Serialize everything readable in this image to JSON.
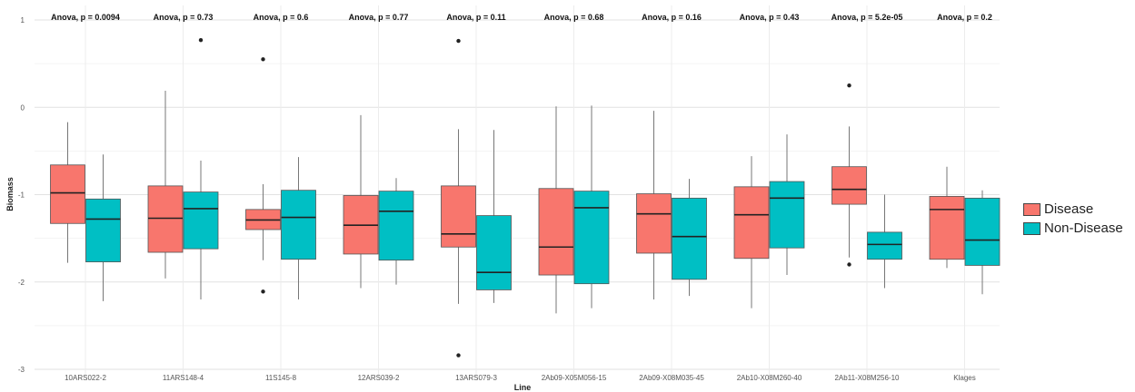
{
  "chart_data": {
    "type": "boxplot",
    "xlabel": "Line",
    "ylabel": "Biomass",
    "ylim": [
      -3,
      1
    ],
    "yticks": [
      1,
      0,
      -1,
      -2,
      -3
    ],
    "grid": true,
    "legend_position": "right",
    "colors": {
      "Disease": "#F8766D",
      "Non-Disease": "#00BFC4"
    },
    "categories": [
      "10ARS022-2",
      "11ARS148-4",
      "11S145-8",
      "12ARS039-2",
      "13ARS079-3",
      "2Ab09-X05M056-15",
      "2Ab09-X08M035-45",
      "2Ab10-X08M260-40",
      "2Ab11-X08M256-10",
      "Klages"
    ],
    "annotations": [
      "Anova, p = 0.0094",
      "Anova, p = 0.73",
      "Anova, p = 0.6",
      "Anova, p = 0.77",
      "Anova, p = 0.11",
      "Anova, p = 0.68",
      "Anova, p = 0.16",
      "Anova, p = 0.43",
      "Anova, p = 5.2e-05",
      "Anova, p = 0.2"
    ],
    "series": [
      {
        "name": "Disease",
        "boxes": [
          {
            "whislo": -1.78,
            "q1": -1.33,
            "med": -0.98,
            "q3": -0.66,
            "whishi": -0.17,
            "outliers": []
          },
          {
            "whislo": -1.96,
            "q1": -1.66,
            "med": -1.27,
            "q3": -0.9,
            "whishi": 0.19,
            "outliers": []
          },
          {
            "whislo": -1.75,
            "q1": -1.4,
            "med": -1.29,
            "q3": -1.17,
            "whishi": -0.88,
            "outliers": [
              0.55,
              -2.11
            ]
          },
          {
            "whislo": -2.07,
            "q1": -1.68,
            "med": -1.35,
            "q3": -1.01,
            "whishi": -0.09,
            "outliers": []
          },
          {
            "whislo": -2.25,
            "q1": -1.6,
            "med": -1.45,
            "q3": -0.9,
            "whishi": -0.25,
            "outliers": [
              0.76,
              -2.84
            ]
          },
          {
            "whislo": -2.36,
            "q1": -1.92,
            "med": -1.6,
            "q3": -0.93,
            "whishi": 0.01,
            "outliers": []
          },
          {
            "whislo": -2.2,
            "q1": -1.67,
            "med": -1.22,
            "q3": -0.99,
            "whishi": -0.04,
            "outliers": []
          },
          {
            "whislo": -2.3,
            "q1": -1.73,
            "med": -1.23,
            "q3": -0.91,
            "whishi": -0.56,
            "outliers": []
          },
          {
            "whislo": -1.72,
            "q1": -1.11,
            "med": -0.94,
            "q3": -0.68,
            "whishi": -0.22,
            "outliers": [
              0.25,
              -1.8
            ]
          },
          {
            "whislo": -1.84,
            "q1": -1.74,
            "med": -1.17,
            "q3": -1.02,
            "whishi": -0.68,
            "outliers": []
          }
        ]
      },
      {
        "name": "Non-Disease",
        "boxes": [
          {
            "whislo": -2.22,
            "q1": -1.77,
            "med": -1.28,
            "q3": -1.05,
            "whishi": -0.54,
            "outliers": []
          },
          {
            "whislo": -2.2,
            "q1": -1.62,
            "med": -1.16,
            "q3": -0.97,
            "whishi": -0.61,
            "outliers": [
              0.77
            ]
          },
          {
            "whislo": -2.2,
            "q1": -1.74,
            "med": -1.26,
            "q3": -0.95,
            "whishi": -0.57,
            "outliers": []
          },
          {
            "whislo": -2.03,
            "q1": -1.75,
            "med": -1.19,
            "q3": -0.96,
            "whishi": -0.81,
            "outliers": []
          },
          {
            "whislo": -2.24,
            "q1": -2.09,
            "med": -1.89,
            "q3": -1.24,
            "whishi": -0.26,
            "outliers": []
          },
          {
            "whislo": -2.3,
            "q1": -2.02,
            "med": -1.15,
            "q3": -0.96,
            "whishi": 0.02,
            "outliers": []
          },
          {
            "whislo": -2.16,
            "q1": -1.97,
            "med": -1.48,
            "q3": -1.04,
            "whishi": -0.82,
            "outliers": []
          },
          {
            "whislo": -1.92,
            "q1": -1.61,
            "med": -1.04,
            "q3": -0.85,
            "whishi": -0.31,
            "outliers": []
          },
          {
            "whislo": -2.07,
            "q1": -1.74,
            "med": -1.57,
            "q3": -1.43,
            "whishi": -1.0,
            "outliers": []
          },
          {
            "whislo": -2.14,
            "q1": -1.81,
            "med": -1.52,
            "q3": -1.04,
            "whishi": -0.95,
            "outliers": []
          }
        ]
      }
    ]
  }
}
